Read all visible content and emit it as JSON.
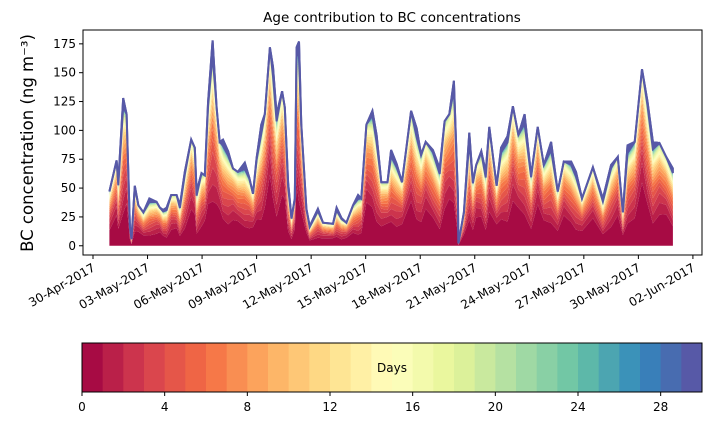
{
  "chart_data": {
    "type": "area",
    "stacked": true,
    "title": "Age contribution to BC concentrations",
    "ylabel": "BC concentration (ng m⁻³)",
    "xlabel": "",
    "ylim": [
      -8,
      187
    ],
    "yticks": [
      0,
      25,
      50,
      75,
      100,
      125,
      150,
      175
    ],
    "x_origin": "30-Apr-2017",
    "xlim_days": [
      -0.55,
      33.5
    ],
    "xticks_days": [
      0,
      3,
      6,
      9,
      12,
      15,
      18,
      21,
      24,
      27,
      30,
      33
    ],
    "xtick_labels": [
      "30-Apr-2017",
      "03-May-2017",
      "06-May-2017",
      "09-May-2017",
      "12-May-2017",
      "15-May-2017",
      "18-May-2017",
      "21-May-2017",
      "24-May-2017",
      "27-May-2017",
      "30-May-2017",
      "02-Jun-2017"
    ],
    "total": {
      "x_days": [
        0.9,
        1.3,
        1.39,
        1.66,
        1.85,
        2.03,
        2.12,
        2.3,
        2.5,
        2.77,
        3.1,
        3.5,
        3.68,
        3.86,
        4.05,
        4.3,
        4.6,
        4.78,
        5.05,
        5.4,
        5.6,
        5.7,
        5.97,
        6.15,
        6.33,
        6.58,
        6.8,
        6.97,
        7.15,
        7.43,
        7.7,
        7.97,
        8.35,
        8.6,
        8.8,
        9.0,
        9.26,
        9.45,
        9.73,
        9.9,
        10.1,
        10.4,
        10.55,
        10.73,
        10.92,
        11.1,
        11.2,
        11.33,
        11.46,
        11.74,
        11.92,
        12.37,
        12.65,
        13.2,
        13.4,
        13.67,
        13.94,
        14.3,
        14.58,
        14.76,
        15.04,
        15.37,
        15.6,
        15.86,
        16.2,
        16.4,
        16.7,
        17.0,
        17.5,
        17.8,
        18.05,
        18.3,
        18.7,
        19.07,
        19.34,
        19.6,
        19.85,
        20.07,
        20.1,
        20.4,
        20.7,
        20.9,
        21.08,
        21.36,
        21.6,
        21.8,
        22.2,
        22.45,
        22.8,
        23.1,
        23.4,
        23.74,
        24.1,
        24.46,
        24.8,
        25.2,
        25.56,
        25.9,
        26.3,
        26.57,
        26.9,
        27.5,
        28.05,
        28.5,
        28.87,
        29.15,
        29.4,
        29.8,
        30.2,
        30.5,
        30.8,
        31.16,
        31.53,
        31.9
      ],
      "values": [
        47,
        74,
        55,
        128,
        114,
        17,
        6,
        52,
        35,
        29,
        41,
        38,
        33,
        31,
        33,
        44,
        44,
        35,
        64,
        92,
        85,
        47,
        63,
        61,
        125,
        178,
        120,
        90,
        92,
        82,
        67,
        64,
        72,
        59,
        45,
        76,
        105,
        114,
        172,
        155,
        114,
        134,
        120,
        55,
        24,
        41,
        172,
        177,
        105,
        32,
        17,
        32,
        20,
        19,
        33,
        24,
        20,
        35,
        44,
        41,
        105,
        117,
        96,
        55,
        55,
        83,
        71,
        55,
        117,
        102,
        79,
        90,
        83,
        67,
        108,
        114,
        143,
        44,
        2,
        29,
        98,
        55,
        70,
        82,
        64,
        103,
        52,
        85,
        95,
        121,
        96,
        114,
        61,
        103,
        70,
        90,
        47,
        73,
        73,
        64,
        41,
        68,
        41,
        70,
        77,
        29,
        87,
        90,
        153,
        125,
        90,
        89,
        77,
        67
      ]
    },
    "age_bins": {
      "label": "Days",
      "range": [
        0,
        30
      ],
      "count": 30,
      "ticks": [
        0,
        4,
        8,
        12,
        16,
        20,
        24,
        28
      ],
      "fraction_of_total": [
        0.3,
        0.1,
        0.08,
        0.065,
        0.055,
        0.05,
        0.045,
        0.04,
        0.035,
        0.03,
        0.027,
        0.024,
        0.021,
        0.019,
        0.017,
        0.015,
        0.014,
        0.013,
        0.012,
        0.011,
        0.01,
        0.009,
        0.008,
        0.008,
        0.007,
        0.007,
        0.006,
        0.006,
        0.006,
        0.005
      ]
    },
    "colormap": {
      "name": "Spectral",
      "anchors": [
        "#9e0142",
        "#d53e4f",
        "#f46d43",
        "#fdae61",
        "#fee08b",
        "#ffffbf",
        "#e6f598",
        "#abdda4",
        "#66c2a5",
        "#3288bd",
        "#5e4fa2"
      ]
    },
    "legend": "colorbar-bottom"
  }
}
